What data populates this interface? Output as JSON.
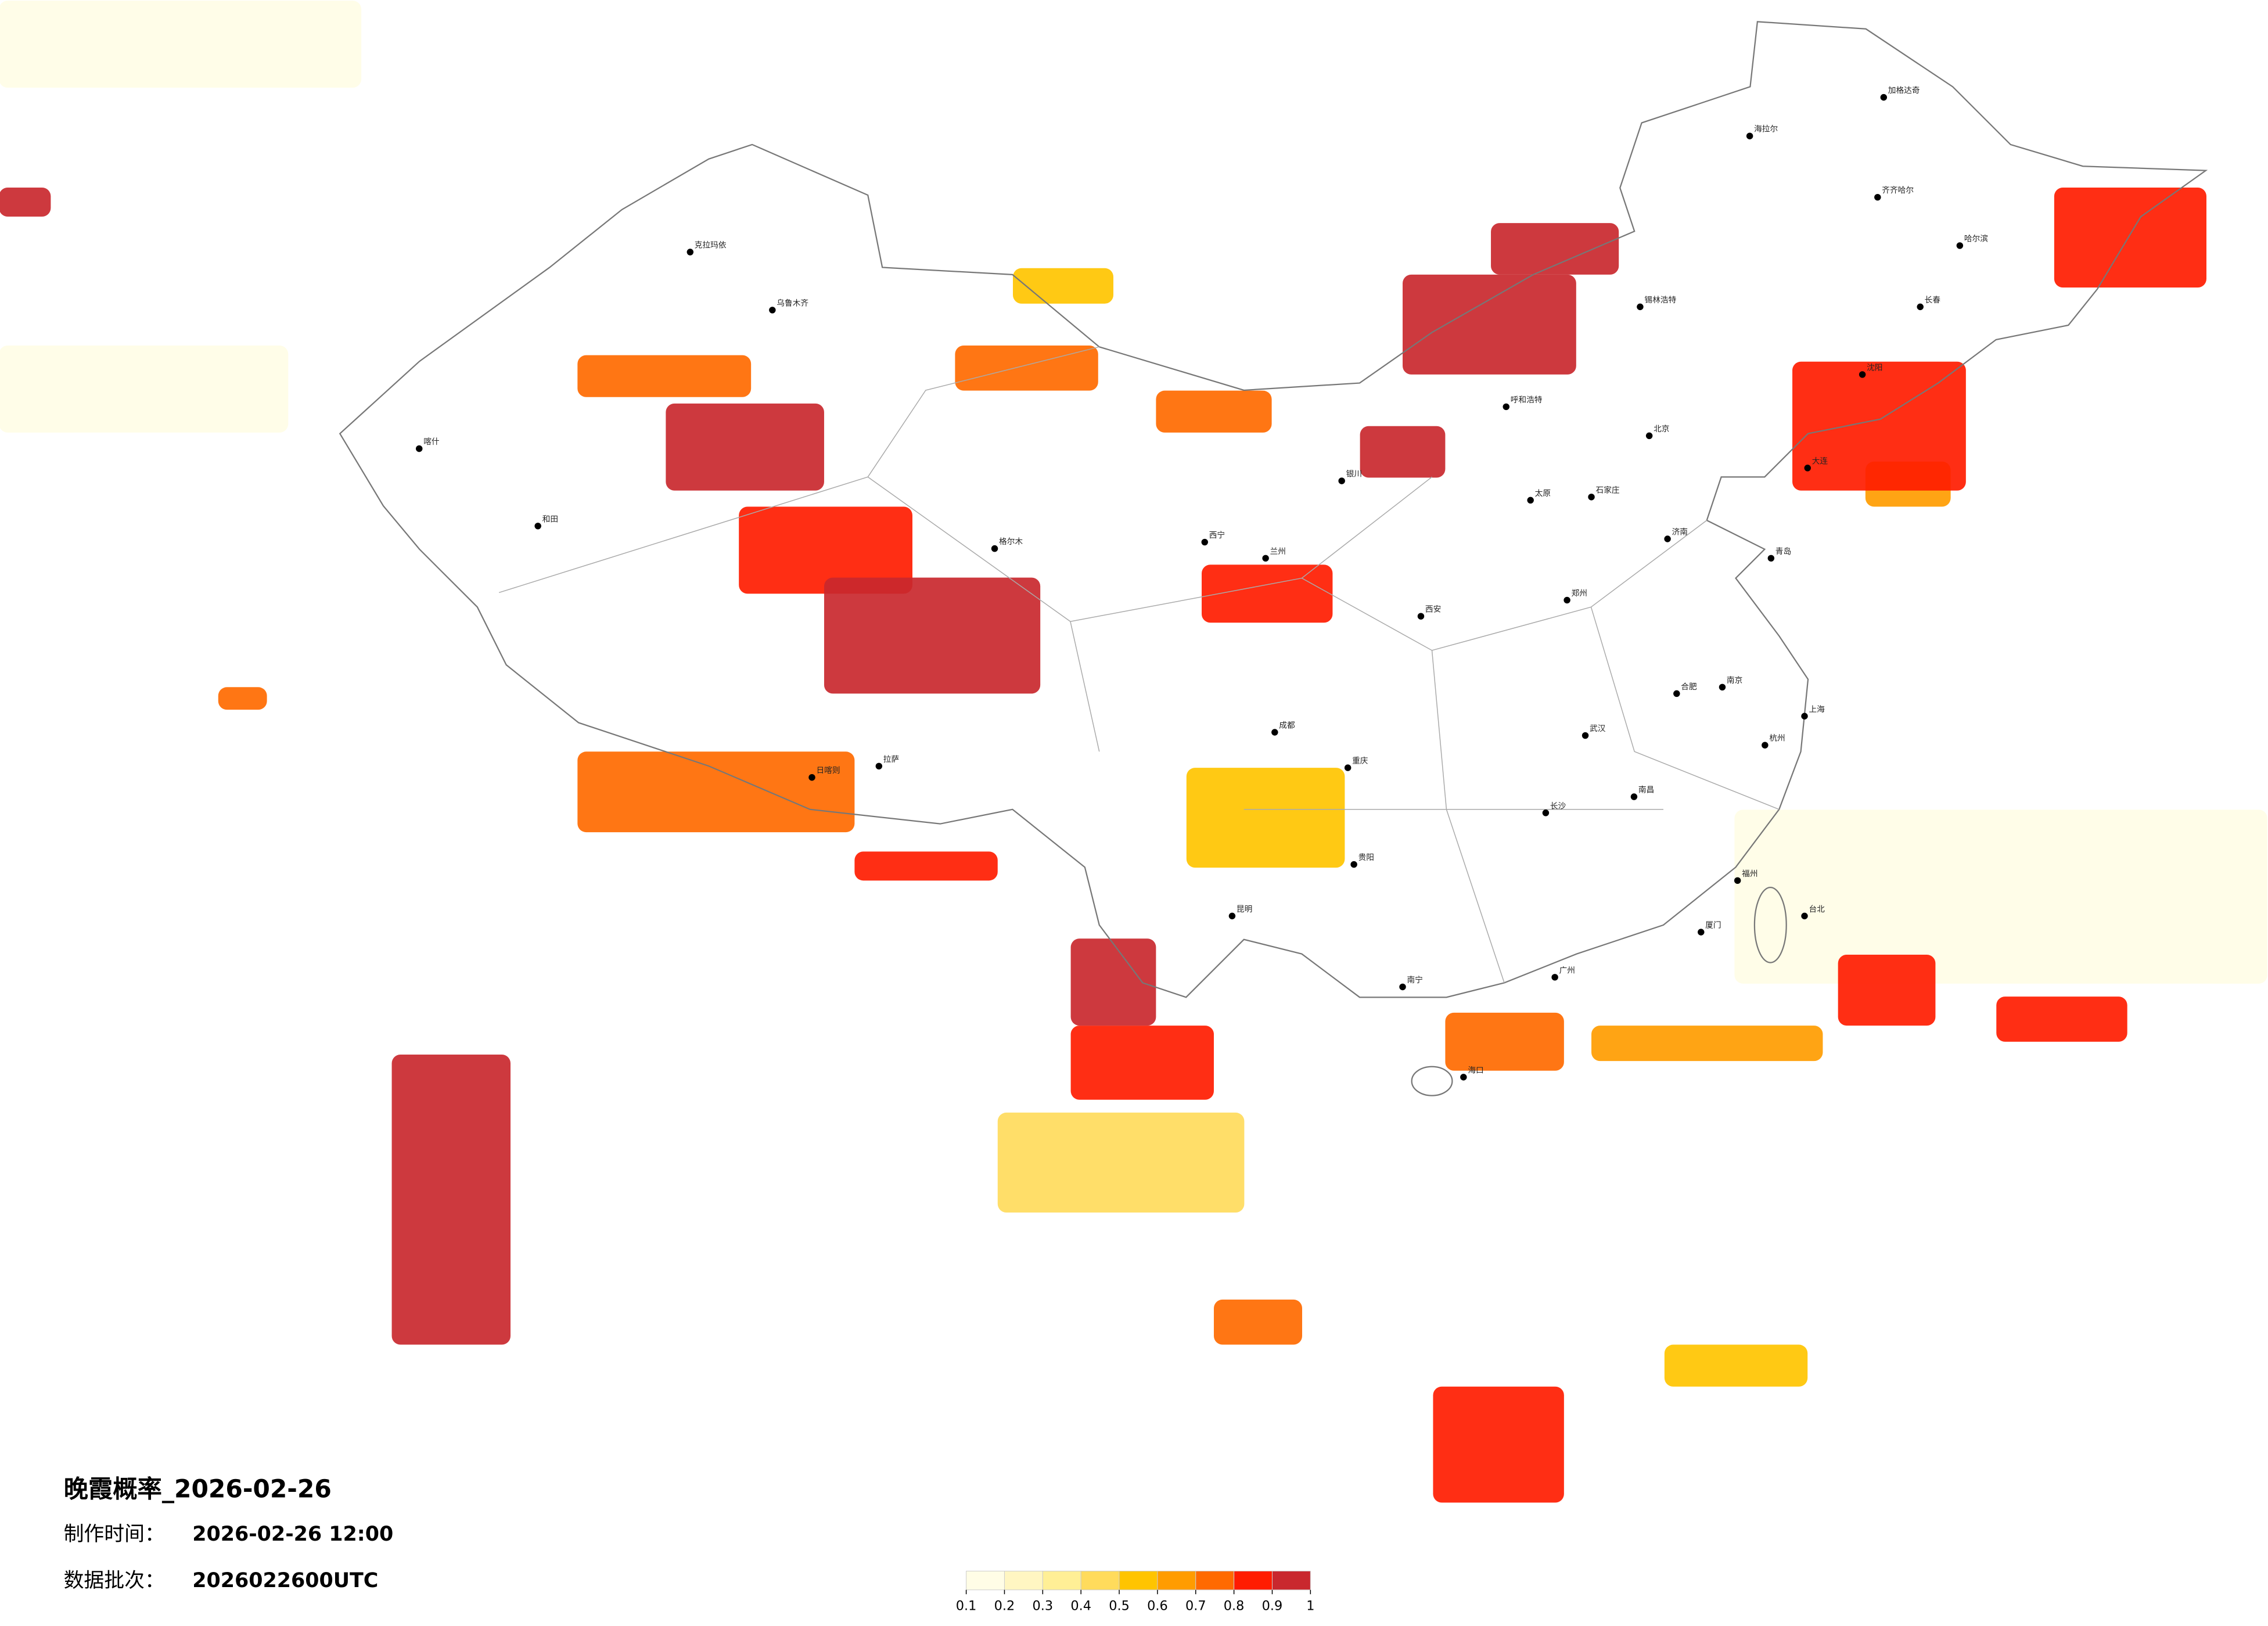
{
  "header": {
    "title": "晚霞概率_2026-02-26",
    "made_label": "制作时间：",
    "made_value": "2026-02-26 12:00",
    "batch_label": "数据批次：",
    "batch_value": "2026022600UTC"
  },
  "colorbar": {
    "ticks": [
      0.1,
      0.2,
      0.3,
      0.4,
      0.5,
      0.6,
      0.7,
      0.8,
      0.9,
      1
    ],
    "colors": [
      "#fffde6",
      "#fff6c2",
      "#ffef96",
      "#ffdb5c",
      "#ffc400",
      "#ff9c00",
      "#ff6a00",
      "#ff1c00",
      "#c9282e"
    ]
  },
  "patches": [
    {
      "lon": [
        62.2,
        74.1
      ],
      "lat": [
        53.4,
        50.7
      ],
      "p": 0.15
    },
    {
      "lon": [
        62.2,
        71.7
      ],
      "lat": [
        42.7,
        40.0
      ],
      "p": 0.15
    },
    {
      "lon": [
        119.2,
        136.7
      ],
      "lat": [
        28.3,
        22.9
      ],
      "p": 0.15
    },
    {
      "lon": [
        95.0,
        103.1
      ],
      "lat": [
        18.9,
        15.8
      ],
      "p": 0.4
    },
    {
      "lon": [
        95.5,
        98.8
      ],
      "lat": [
        45.1,
        44.0
      ],
      "p": 0.5
    },
    {
      "lon": [
        101.2,
        106.4
      ],
      "lat": [
        29.6,
        26.5
      ],
      "p": 0.5
    },
    {
      "lon": [
        116.9,
        121.6
      ],
      "lat": [
        11.7,
        10.4
      ],
      "p": 0.5
    },
    {
      "lon": [
        114.5,
        122.1
      ],
      "lat": [
        21.6,
        20.5
      ],
      "p": 0.6
    },
    {
      "lon": [
        123.5,
        126.3
      ],
      "lat": [
        39.1,
        37.7
      ],
      "p": 0.6
    },
    {
      "lon": [
        81.2,
        90.3
      ],
      "lat": [
        30.1,
        27.6
      ],
      "p": 0.75
    },
    {
      "lon": [
        81.2,
        86.9
      ],
      "lat": [
        42.4,
        41.1
      ],
      "p": 0.7
    },
    {
      "lon": [
        93.6,
        98.3
      ],
      "lat": [
        42.7,
        41.3
      ],
      "p": 0.75
    },
    {
      "lon": [
        100.2,
        104.0
      ],
      "lat": [
        41.3,
        40.0
      ],
      "p": 0.7
    },
    {
      "lon": [
        69.4,
        71.0
      ],
      "lat": [
        32.1,
        31.4
      ],
      "p": 0.7
    },
    {
      "lon": [
        109.7,
        113.6
      ],
      "lat": [
        22.0,
        20.2
      ],
      "p": 0.7
    },
    {
      "lon": [
        102.1,
        105.0
      ],
      "lat": [
        13.1,
        11.7
      ],
      "p": 0.75
    },
    {
      "lon": [
        86.5,
        92.2
      ],
      "lat": [
        37.7,
        35.0
      ],
      "p": 0.8
    },
    {
      "lon": [
        101.7,
        106.0
      ],
      "lat": [
        35.9,
        34.1
      ],
      "p": 0.8
    },
    {
      "lon": [
        129.7,
        134.7
      ],
      "lat": [
        47.6,
        44.5
      ],
      "p": 0.8
    },
    {
      "lon": [
        122.6,
        125.8
      ],
      "lat": [
        23.8,
        21.6
      ],
      "p": 0.8
    },
    {
      "lon": [
        121.1,
        126.8
      ],
      "lat": [
        42.2,
        38.2
      ],
      "p": 0.85
    },
    {
      "lon": [
        97.4,
        102.1
      ],
      "lat": [
        21.6,
        19.3
      ],
      "p": 0.85
    },
    {
      "lon": [
        109.3,
        113.6
      ],
      "lat": [
        10.4,
        6.8
      ],
      "p": 0.85
    },
    {
      "lon": [
        127.8,
        132.1
      ],
      "lat": [
        22.5,
        21.1
      ],
      "p": 0.85
    },
    {
      "lon": [
        90.3,
        95.0
      ],
      "lat": [
        27.0,
        26.1
      ],
      "p": 0.85
    },
    {
      "lon": [
        75.1,
        79.0
      ],
      "lat": [
        20.7,
        11.7
      ],
      "p": 0.9
    },
    {
      "lon": [
        108.3,
        114.0
      ],
      "lat": [
        44.9,
        41.8
      ],
      "p": 0.9
    },
    {
      "lon": [
        62.2,
        63.9
      ],
      "lat": [
        47.6,
        46.7
      ],
      "p": 0.9
    },
    {
      "lon": [
        84.1,
        89.3
      ],
      "lat": [
        40.9,
        38.2
      ],
      "p": 0.95
    },
    {
      "lon": [
        89.3,
        96.4
      ],
      "lat": [
        35.5,
        31.9
      ],
      "p": 0.95
    },
    {
      "lon": [
        106.9,
        109.7
      ],
      "lat": [
        40.2,
        38.6
      ],
      "p": 0.95
    },
    {
      "lon": [
        111.2,
        115.4
      ],
      "lat": [
        46.5,
        44.9
      ],
      "p": 0.95
    },
    {
      "lon": [
        97.4,
        100.2
      ],
      "lat": [
        24.3,
        21.6
      ],
      "p": 0.95
    }
  ],
  "cities": [
    {
      "name": "北京",
      "lon": 116.4,
      "lat": 39.9
    },
    {
      "name": "上海",
      "lon": 121.5,
      "lat": 31.2
    },
    {
      "name": "广州",
      "lon": 113.3,
      "lat": 23.1
    },
    {
      "name": "哈尔滨",
      "lon": 126.6,
      "lat": 45.8
    },
    {
      "name": "乌鲁木齐",
      "lon": 87.6,
      "lat": 43.8
    },
    {
      "name": "拉萨",
      "lon": 91.1,
      "lat": 29.65
    },
    {
      "name": "西宁",
      "lon": 101.8,
      "lat": 36.6
    },
    {
      "name": "兰州",
      "lon": 103.8,
      "lat": 36.1
    },
    {
      "name": "成都",
      "lon": 104.1,
      "lat": 30.7
    },
    {
      "name": "重庆",
      "lon": 106.5,
      "lat": 29.6
    },
    {
      "name": "昆明",
      "lon": 102.7,
      "lat": 25.0
    },
    {
      "name": "贵阳",
      "lon": 106.7,
      "lat": 26.6
    },
    {
      "name": "南宁",
      "lon": 108.3,
      "lat": 22.8
    },
    {
      "name": "长沙",
      "lon": 113.0,
      "lat": 28.2
    },
    {
      "name": "武汉",
      "lon": 114.3,
      "lat": 30.6
    },
    {
      "name": "郑州",
      "lon": 113.7,
      "lat": 34.8
    },
    {
      "name": "西安",
      "lon": 108.9,
      "lat": 34.3
    },
    {
      "name": "太原",
      "lon": 112.5,
      "lat": 37.9
    },
    {
      "name": "石家庄",
      "lon": 114.5,
      "lat": 38.0
    },
    {
      "name": "济南",
      "lon": 117.0,
      "lat": 36.7
    },
    {
      "name": "南京",
      "lon": 118.8,
      "lat": 32.1
    },
    {
      "name": "杭州",
      "lon": 120.2,
      "lat": 30.3
    },
    {
      "name": "福州",
      "lon": 119.3,
      "lat": 26.1
    },
    {
      "name": "南昌",
      "lon": 115.9,
      "lat": 28.7
    },
    {
      "name": "合肥",
      "lon": 117.3,
      "lat": 31.9
    },
    {
      "name": "沈阳",
      "lon": 123.4,
      "lat": 41.8
    },
    {
      "name": "长春",
      "lon": 125.3,
      "lat": 43.9
    },
    {
      "name": "呼和浩特",
      "lon": 111.7,
      "lat": 40.8
    },
    {
      "name": "银川",
      "lon": 106.3,
      "lat": 38.5
    },
    {
      "name": "海口",
      "lon": 110.3,
      "lat": 20.0
    },
    {
      "name": "台北",
      "lon": 121.5,
      "lat": 25.0
    },
    {
      "name": "喀什",
      "lon": 76.0,
      "lat": 39.5
    },
    {
      "name": "和田",
      "lon": 79.9,
      "lat": 37.1
    },
    {
      "name": "克拉玛依",
      "lon": 84.9,
      "lat": 45.6
    },
    {
      "name": "海拉尔",
      "lon": 119.7,
      "lat": 49.2
    },
    {
      "name": "齐齐哈尔",
      "lon": 123.9,
      "lat": 47.3
    },
    {
      "name": "锡林浩特",
      "lon": 116.1,
      "lat": 43.9
    },
    {
      "name": "格尔木",
      "lon": 94.9,
      "lat": 36.4
    },
    {
      "name": "日喀则",
      "lon": 88.9,
      "lat": 29.3
    },
    {
      "name": "大连",
      "lon": 121.6,
      "lat": 38.9
    },
    {
      "name": "青岛",
      "lon": 120.4,
      "lat": 36.1
    },
    {
      "name": "厦门",
      "lon": 118.1,
      "lat": 24.5
    },
    {
      "name": "加格达奇",
      "lon": 124.1,
      "lat": 50.4
    }
  ]
}
